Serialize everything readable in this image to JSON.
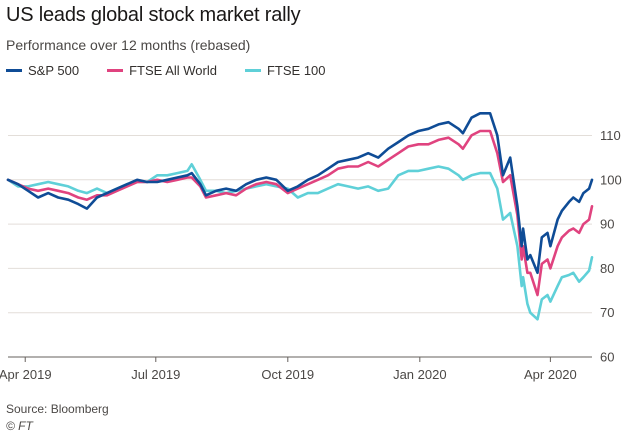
{
  "title": "US leads global stock market rally",
  "subtitle": "Performance over 12 months (rebased)",
  "source": "Source: Bloomberg",
  "credit": "© FT",
  "colors": {
    "sp500": "#0f4c96",
    "ftse_all_world": "#e0437f",
    "ftse_100": "#5fd0d8",
    "grid": "#e3ded9",
    "axis": "#66605c"
  },
  "chart_data": {
    "type": "line",
    "title": "US leads global stock market rally",
    "subtitle": "Performance over 12 months (rebased)",
    "xlabel": "",
    "ylabel": "",
    "ylim": [
      60,
      118
    ],
    "yticks": [
      60,
      70,
      80,
      90,
      100,
      110
    ],
    "y_axis_side": "right",
    "grid": true,
    "legend_position": "top-left",
    "x_range": [
      "2019-03-20",
      "2020-04-30"
    ],
    "x_ticks": [
      {
        "date": "2019-04-01",
        "label": "Apr 2019"
      },
      {
        "date": "2019-07-01",
        "label": "Jul 2019"
      },
      {
        "date": "2019-10-01",
        "label": "Oct 2019"
      },
      {
        "date": "2020-01-01",
        "label": "Jan 2020"
      },
      {
        "date": "2020-04-01",
        "label": "Apr 2020"
      }
    ],
    "series": [
      {
        "name": "S&P 500",
        "color": "#0f4c96",
        "points": [
          [
            "2019-03-20",
            100
          ],
          [
            "2019-03-27",
            99
          ],
          [
            "2019-04-03",
            97.5
          ],
          [
            "2019-04-10",
            96
          ],
          [
            "2019-04-17",
            97
          ],
          [
            "2019-04-24",
            96
          ],
          [
            "2019-05-01",
            95.5
          ],
          [
            "2019-05-08",
            94.5
          ],
          [
            "2019-05-14",
            93.5
          ],
          [
            "2019-05-21",
            96
          ],
          [
            "2019-05-28",
            97
          ],
          [
            "2019-06-04",
            98
          ],
          [
            "2019-06-11",
            99
          ],
          [
            "2019-06-18",
            100
          ],
          [
            "2019-06-25",
            99.5
          ],
          [
            "2019-07-02",
            99.5
          ],
          [
            "2019-07-09",
            100
          ],
          [
            "2019-07-16",
            100.5
          ],
          [
            "2019-07-23",
            101
          ],
          [
            "2019-07-26",
            101.5
          ],
          [
            "2019-08-01",
            99
          ],
          [
            "2019-08-05",
            96.5
          ],
          [
            "2019-08-12",
            97.5
          ],
          [
            "2019-08-19",
            98
          ],
          [
            "2019-08-26",
            97.5
          ],
          [
            "2019-09-02",
            99
          ],
          [
            "2019-09-09",
            100
          ],
          [
            "2019-09-16",
            100.5
          ],
          [
            "2019-09-23",
            100
          ],
          [
            "2019-10-01",
            97.5
          ],
          [
            "2019-10-08",
            98.5
          ],
          [
            "2019-10-15",
            100
          ],
          [
            "2019-10-22",
            101
          ],
          [
            "2019-10-29",
            102.5
          ],
          [
            "2019-11-05",
            104
          ],
          [
            "2019-11-12",
            104.5
          ],
          [
            "2019-11-19",
            105
          ],
          [
            "2019-11-26",
            106
          ],
          [
            "2019-12-03",
            105
          ],
          [
            "2019-12-10",
            107
          ],
          [
            "2019-12-17",
            108.5
          ],
          [
            "2019-12-24",
            110
          ],
          [
            "2019-12-31",
            111
          ],
          [
            "2020-01-07",
            111.5
          ],
          [
            "2020-01-14",
            112.5
          ],
          [
            "2020-01-21",
            113
          ],
          [
            "2020-01-28",
            111.5
          ],
          [
            "2020-01-31",
            110.5
          ],
          [
            "2020-02-06",
            114
          ],
          [
            "2020-02-12",
            115
          ],
          [
            "2020-02-19",
            115
          ],
          [
            "2020-02-24",
            110
          ],
          [
            "2020-02-28",
            101
          ],
          [
            "2020-03-04",
            105
          ],
          [
            "2020-03-09",
            94
          ],
          [
            "2020-03-12",
            85
          ],
          [
            "2020-03-13",
            89
          ],
          [
            "2020-03-16",
            82
          ],
          [
            "2020-03-18",
            83
          ],
          [
            "2020-03-23",
            79
          ],
          [
            "2020-03-26",
            87
          ],
          [
            "2020-03-30",
            88
          ],
          [
            "2020-04-01",
            85
          ],
          [
            "2020-04-06",
            91
          ],
          [
            "2020-04-09",
            93
          ],
          [
            "2020-04-14",
            95
          ],
          [
            "2020-04-17",
            96
          ],
          [
            "2020-04-21",
            95
          ],
          [
            "2020-04-24",
            97
          ],
          [
            "2020-04-28",
            98
          ],
          [
            "2020-04-30",
            100
          ]
        ]
      },
      {
        "name": "FTSE All World",
        "color": "#e0437f",
        "points": [
          [
            "2019-03-20",
            100
          ],
          [
            "2019-03-27",
            99
          ],
          [
            "2019-04-03",
            98
          ],
          [
            "2019-04-10",
            97.5
          ],
          [
            "2019-04-17",
            98
          ],
          [
            "2019-04-24",
            97.5
          ],
          [
            "2019-05-01",
            97
          ],
          [
            "2019-05-08",
            96
          ],
          [
            "2019-05-14",
            95.5
          ],
          [
            "2019-05-21",
            96.5
          ],
          [
            "2019-05-28",
            96.5
          ],
          [
            "2019-06-04",
            97.5
          ],
          [
            "2019-06-11",
            98.5
          ],
          [
            "2019-06-18",
            99.5
          ],
          [
            "2019-06-25",
            99.5
          ],
          [
            "2019-07-02",
            100
          ],
          [
            "2019-07-09",
            99.5
          ],
          [
            "2019-07-16",
            100
          ],
          [
            "2019-07-23",
            100.5
          ],
          [
            "2019-07-26",
            100.5
          ],
          [
            "2019-08-01",
            98.5
          ],
          [
            "2019-08-05",
            96
          ],
          [
            "2019-08-12",
            96.5
          ],
          [
            "2019-08-19",
            97
          ],
          [
            "2019-08-26",
            96.5
          ],
          [
            "2019-09-02",
            98
          ],
          [
            "2019-09-09",
            99
          ],
          [
            "2019-09-16",
            99.5
          ],
          [
            "2019-09-23",
            99
          ],
          [
            "2019-10-01",
            97
          ],
          [
            "2019-10-08",
            98
          ],
          [
            "2019-10-15",
            99
          ],
          [
            "2019-10-22",
            100
          ],
          [
            "2019-10-29",
            101
          ],
          [
            "2019-11-05",
            102.5
          ],
          [
            "2019-11-12",
            103
          ],
          [
            "2019-11-19",
            103
          ],
          [
            "2019-11-26",
            104
          ],
          [
            "2019-12-03",
            103
          ],
          [
            "2019-12-10",
            104.5
          ],
          [
            "2019-12-17",
            106
          ],
          [
            "2019-12-24",
            107.5
          ],
          [
            "2019-12-31",
            108
          ],
          [
            "2020-01-07",
            108
          ],
          [
            "2020-01-14",
            109
          ],
          [
            "2020-01-21",
            109.5
          ],
          [
            "2020-01-28",
            108
          ],
          [
            "2020-01-31",
            107
          ],
          [
            "2020-02-06",
            110
          ],
          [
            "2020-02-12",
            111
          ],
          [
            "2020-02-19",
            111
          ],
          [
            "2020-02-24",
            106
          ],
          [
            "2020-02-28",
            99.5
          ],
          [
            "2020-03-04",
            101
          ],
          [
            "2020-03-09",
            92
          ],
          [
            "2020-03-12",
            82
          ],
          [
            "2020-03-13",
            85
          ],
          [
            "2020-03-16",
            79
          ],
          [
            "2020-03-18",
            79
          ],
          [
            "2020-03-23",
            74
          ],
          [
            "2020-03-26",
            81
          ],
          [
            "2020-03-30",
            82
          ],
          [
            "2020-04-01",
            80
          ],
          [
            "2020-04-06",
            85
          ],
          [
            "2020-04-09",
            87
          ],
          [
            "2020-04-14",
            88.5
          ],
          [
            "2020-04-17",
            89
          ],
          [
            "2020-04-21",
            88
          ],
          [
            "2020-04-24",
            90
          ],
          [
            "2020-04-28",
            91
          ],
          [
            "2020-04-30",
            94
          ]
        ]
      },
      {
        "name": "FTSE 100",
        "color": "#5fd0d8",
        "points": [
          [
            "2019-03-20",
            100
          ],
          [
            "2019-03-27",
            98.5
          ],
          [
            "2019-04-03",
            98.5
          ],
          [
            "2019-04-10",
            99
          ],
          [
            "2019-04-17",
            99.5
          ],
          [
            "2019-04-24",
            99
          ],
          [
            "2019-05-01",
            98.5
          ],
          [
            "2019-05-08",
            97.5
          ],
          [
            "2019-05-14",
            97
          ],
          [
            "2019-05-21",
            98
          ],
          [
            "2019-05-28",
            97
          ],
          [
            "2019-06-04",
            98
          ],
          [
            "2019-06-11",
            99
          ],
          [
            "2019-06-18",
            99.5
          ],
          [
            "2019-06-25",
            99.5
          ],
          [
            "2019-07-02",
            101
          ],
          [
            "2019-07-09",
            101
          ],
          [
            "2019-07-16",
            101.5
          ],
          [
            "2019-07-23",
            102
          ],
          [
            "2019-07-26",
            103.5
          ],
          [
            "2019-08-01",
            100
          ],
          [
            "2019-08-05",
            97.5
          ],
          [
            "2019-08-12",
            97.5
          ],
          [
            "2019-08-19",
            97
          ],
          [
            "2019-08-26",
            97.5
          ],
          [
            "2019-09-02",
            98
          ],
          [
            "2019-09-09",
            98.5
          ],
          [
            "2019-09-16",
            99
          ],
          [
            "2019-09-23",
            98.5
          ],
          [
            "2019-10-01",
            98
          ],
          [
            "2019-10-08",
            96
          ],
          [
            "2019-10-15",
            97
          ],
          [
            "2019-10-22",
            97
          ],
          [
            "2019-10-29",
            98
          ],
          [
            "2019-11-05",
            99
          ],
          [
            "2019-11-12",
            98.5
          ],
          [
            "2019-11-19",
            98
          ],
          [
            "2019-11-26",
            98.5
          ],
          [
            "2019-12-03",
            97.5
          ],
          [
            "2019-12-10",
            98
          ],
          [
            "2019-12-17",
            101
          ],
          [
            "2019-12-24",
            102
          ],
          [
            "2019-12-31",
            102
          ],
          [
            "2020-01-07",
            102.5
          ],
          [
            "2020-01-14",
            103
          ],
          [
            "2020-01-21",
            102.5
          ],
          [
            "2020-01-28",
            101
          ],
          [
            "2020-01-31",
            100
          ],
          [
            "2020-02-06",
            101
          ],
          [
            "2020-02-12",
            101.5
          ],
          [
            "2020-02-19",
            101.5
          ],
          [
            "2020-02-24",
            98
          ],
          [
            "2020-02-28",
            91
          ],
          [
            "2020-03-04",
            92.5
          ],
          [
            "2020-03-09",
            85
          ],
          [
            "2020-03-12",
            76
          ],
          [
            "2020-03-13",
            78
          ],
          [
            "2020-03-16",
            72
          ],
          [
            "2020-03-18",
            70
          ],
          [
            "2020-03-23",
            68.5
          ],
          [
            "2020-03-26",
            73
          ],
          [
            "2020-03-30",
            74
          ],
          [
            "2020-04-01",
            72.5
          ],
          [
            "2020-04-06",
            76
          ],
          [
            "2020-04-09",
            78
          ],
          [
            "2020-04-14",
            78.5
          ],
          [
            "2020-04-17",
            79
          ],
          [
            "2020-04-21",
            77
          ],
          [
            "2020-04-24",
            78
          ],
          [
            "2020-04-28",
            79.5
          ],
          [
            "2020-04-30",
            82.5
          ]
        ]
      }
    ]
  }
}
